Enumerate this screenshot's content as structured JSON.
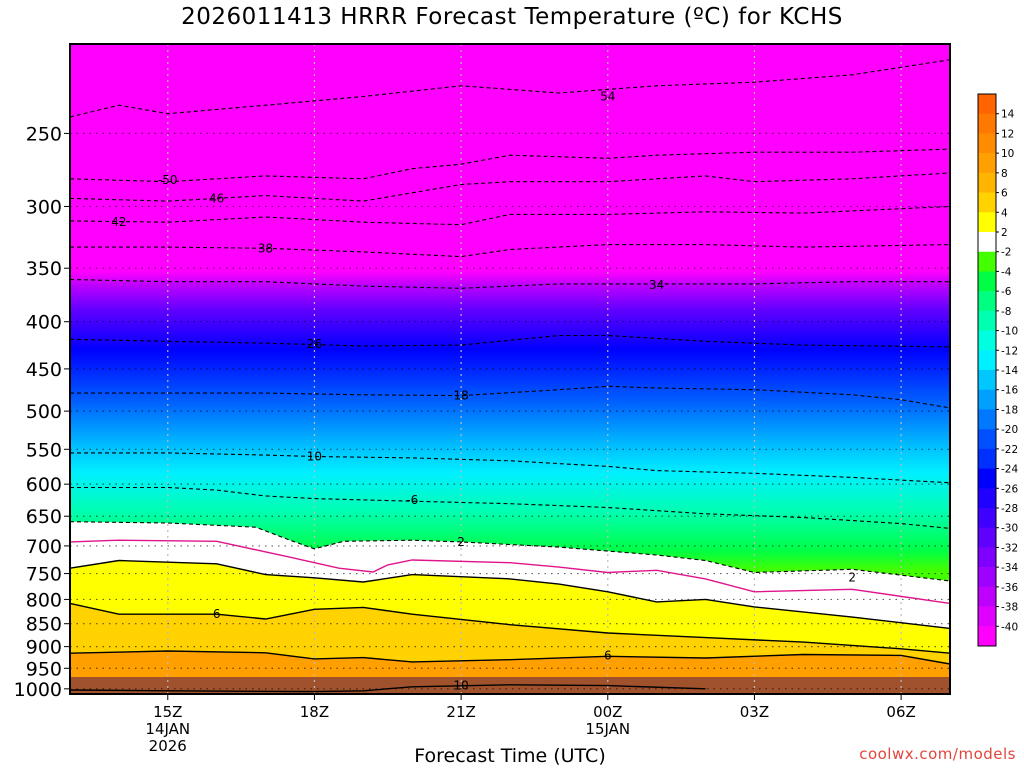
{
  "title": "2026011413 HRRR Forecast Temperature (ºC) for KCHS",
  "watermark": "coolwx.com/models",
  "chart_data": {
    "type": "heatmap",
    "title": "2026011413 HRRR Forecast Temperature (ºC) for KCHS",
    "xlabel": "Forecast Time (UTC)",
    "ylabel": "",
    "x_ticks": [
      {
        "hour": 15,
        "lines": [
          "15Z",
          "14JAN",
          "2026"
        ]
      },
      {
        "hour": 18,
        "lines": [
          "18Z"
        ]
      },
      {
        "hour": 21,
        "lines": [
          "21Z"
        ]
      },
      {
        "hour": 24,
        "lines": [
          "00Z",
          "15JAN"
        ]
      },
      {
        "hour": 27,
        "lines": [
          "03Z"
        ]
      },
      {
        "hour": 30,
        "lines": [
          "06Z"
        ]
      }
    ],
    "xlim_hours": [
      13,
      31
    ],
    "y_ticks": [
      250,
      300,
      350,
      400,
      450,
      500,
      550,
      600,
      650,
      700,
      750,
      800,
      850,
      900,
      950,
      1000
    ],
    "ylim_hpa": [
      200,
      1013
    ],
    "grid": true,
    "colorbar": {
      "position": "right",
      "labels": [
        "14",
        "12",
        "10",
        "8",
        "6",
        "4",
        "2",
        "-2",
        "-4",
        "-6",
        "-8",
        "-10",
        "-12",
        "-14",
        "-16",
        "-18",
        "-20",
        "-22",
        "-24",
        "-26",
        "-28",
        "-30",
        "-32",
        "-34",
        "-36",
        "-38",
        "-40"
      ],
      "colors": [
        "#ff6400",
        "#ff7800",
        "#ff8c00",
        "#ffa000",
        "#ffb400",
        "#ffd200",
        "#ffff00",
        "#ffffff",
        "#44ff00",
        "#00ff44",
        "#00ff80",
        "#00ffb0",
        "#00ffe0",
        "#00f0ff",
        "#00c8ff",
        "#00a0ff",
        "#0078ff",
        "#0050ff",
        "#0030ff",
        "#0000ff",
        "#2000ff",
        "#4000ff",
        "#6000ff",
        "#8000ff",
        "#a000ff",
        "#c000ff",
        "#e000ff",
        "#ff00ff"
      ]
    },
    "contours": [
      {
        "value": -54,
        "label": "54",
        "style": "dashed",
        "color": "#000000",
        "label_at": [
          24,
          228
        ],
        "points": [
          [
            13,
            240
          ],
          [
            14,
            233
          ],
          [
            15,
            238
          ],
          [
            17,
            233
          ],
          [
            19,
            228
          ],
          [
            21,
            222
          ],
          [
            23,
            226
          ],
          [
            25,
            222
          ],
          [
            27,
            220
          ],
          [
            29,
            216
          ],
          [
            31,
            208
          ]
        ]
      },
      {
        "value": -50,
        "label": "-50",
        "style": "dashed",
        "color": "#000000",
        "label_at": [
          15,
          281
        ],
        "points": [
          [
            13,
            280
          ],
          [
            15,
            282
          ],
          [
            17,
            278
          ],
          [
            19,
            280
          ],
          [
            20,
            273
          ],
          [
            21,
            270
          ],
          [
            22,
            264
          ],
          [
            24,
            266
          ],
          [
            25,
            264
          ],
          [
            27,
            262
          ],
          [
            29,
            262
          ],
          [
            31,
            260
          ]
        ]
      },
      {
        "value": -46,
        "label": "46",
        "style": "dashed",
        "color": "#000000",
        "label_at": [
          16,
          294
        ],
        "points": [
          [
            13,
            294
          ],
          [
            15,
            296
          ],
          [
            17,
            292
          ],
          [
            19,
            296
          ],
          [
            21,
            284
          ],
          [
            22,
            282
          ],
          [
            24,
            282
          ],
          [
            26,
            278
          ],
          [
            27,
            282
          ],
          [
            29,
            280
          ],
          [
            31,
            276
          ]
        ]
      },
      {
        "value": -42,
        "label": "42",
        "style": "dashed",
        "color": "#000000",
        "label_at": [
          14,
          312
        ],
        "points": [
          [
            13,
            311
          ],
          [
            15,
            312
          ],
          [
            17,
            308
          ],
          [
            19,
            312
          ],
          [
            21,
            314
          ],
          [
            22,
            306
          ],
          [
            24,
            306
          ],
          [
            26,
            304
          ],
          [
            28,
            305
          ],
          [
            31,
            300
          ]
        ]
      },
      {
        "value": -38,
        "label": "38",
        "style": "dashed",
        "color": "#000000",
        "label_at": [
          17,
          333
        ],
        "points": [
          [
            13,
            332
          ],
          [
            15,
            332
          ],
          [
            17,
            333
          ],
          [
            19,
            336
          ],
          [
            21,
            340
          ],
          [
            22,
            334
          ],
          [
            24,
            330
          ],
          [
            26,
            330
          ],
          [
            28,
            332
          ],
          [
            31,
            330
          ]
        ]
      },
      {
        "value": -34,
        "label": "34",
        "style": "dashed",
        "color": "#000000",
        "label_at": [
          25,
          365
        ],
        "points": [
          [
            13,
            360
          ],
          [
            15,
            362
          ],
          [
            17,
            362
          ],
          [
            19,
            366
          ],
          [
            21,
            368
          ],
          [
            23,
            364
          ],
          [
            25,
            364
          ],
          [
            27,
            364
          ],
          [
            29,
            362
          ],
          [
            31,
            362
          ]
        ]
      },
      {
        "value": -26,
        "label": "26",
        "style": "dashed",
        "color": "#000000",
        "label_at": [
          18,
          423
        ],
        "points": [
          [
            13,
            418
          ],
          [
            15,
            420
          ],
          [
            17,
            422
          ],
          [
            19,
            425
          ],
          [
            21,
            424
          ],
          [
            23,
            414
          ],
          [
            24,
            414
          ],
          [
            26,
            420
          ],
          [
            28,
            424
          ],
          [
            31,
            426
          ]
        ]
      },
      {
        "value": -18,
        "label": "18",
        "style": "dashed",
        "color": "#000000",
        "label_at": [
          21,
          481
        ],
        "points": [
          [
            13,
            478
          ],
          [
            15,
            478
          ],
          [
            17,
            478
          ],
          [
            19,
            480
          ],
          [
            21,
            481
          ],
          [
            23,
            474
          ],
          [
            24,
            470
          ],
          [
            25,
            472
          ],
          [
            27,
            474
          ],
          [
            29,
            480
          ],
          [
            30,
            486
          ],
          [
            31,
            496
          ]
        ]
      },
      {
        "value": -10,
        "label": "10",
        "style": "dashed",
        "color": "#000000",
        "label_at": [
          18,
          560
        ],
        "points": [
          [
            13,
            555
          ],
          [
            15,
            555
          ],
          [
            17,
            558
          ],
          [
            18,
            560
          ],
          [
            20,
            562
          ],
          [
            22,
            566
          ],
          [
            24,
            574
          ],
          [
            25,
            580
          ],
          [
            27,
            584
          ],
          [
            29,
            590
          ],
          [
            31,
            598
          ]
        ]
      },
      {
        "value": -6,
        "label": "-6",
        "style": "dashed",
        "color": "#000000",
        "label_at": [
          20,
          624
        ],
        "points": [
          [
            13,
            605
          ],
          [
            15,
            605
          ],
          [
            16,
            609
          ],
          [
            17,
            618
          ],
          [
            18,
            622
          ],
          [
            20,
            626
          ],
          [
            22,
            630
          ],
          [
            24,
            636
          ],
          [
            26,
            646
          ],
          [
            28,
            652
          ],
          [
            30,
            662
          ],
          [
            31,
            670
          ]
        ]
      },
      {
        "value": -2,
        "label": "2",
        "style": "dashed",
        "color": "#000000",
        "label_at": [
          21,
          693
        ],
        "points": [
          [
            13,
            659
          ],
          [
            15,
            661
          ],
          [
            16.8,
            668
          ],
          [
            17.5,
            690
          ],
          [
            18,
            705
          ],
          [
            18.6,
            692
          ],
          [
            20,
            690
          ],
          [
            21,
            693
          ],
          [
            23,
            702
          ],
          [
            25,
            716
          ],
          [
            26,
            726
          ],
          [
            27,
            748
          ],
          [
            29,
            742
          ],
          [
            31,
            764
          ]
        ]
      },
      {
        "value": 0,
        "label": "",
        "style": "solid",
        "color": "#e0148c",
        "label_at": [],
        "points": [
          [
            13,
            693
          ],
          [
            14,
            690
          ],
          [
            16,
            692
          ],
          [
            17.5,
            720
          ],
          [
            18.5,
            740
          ],
          [
            19.2,
            747
          ],
          [
            19.5,
            734
          ],
          [
            20,
            725
          ],
          [
            22,
            730
          ],
          [
            23,
            738
          ],
          [
            24,
            748
          ],
          [
            25,
            744
          ],
          [
            26,
            760
          ],
          [
            27,
            785
          ],
          [
            29,
            780
          ],
          [
            31,
            808
          ]
        ]
      },
      {
        "value": 2,
        "label": "2",
        "style": "solid",
        "color": "#000000",
        "label_at": [
          29,
          757
        ],
        "points": [
          [
            13,
            740
          ],
          [
            14,
            726
          ],
          [
            16,
            732
          ],
          [
            17,
            752
          ],
          [
            18,
            758
          ],
          [
            19,
            766
          ],
          [
            20,
            752
          ],
          [
            22,
            760
          ],
          [
            23,
            770
          ],
          [
            24,
            785
          ],
          [
            25,
            805
          ],
          [
            26,
            800
          ],
          [
            27,
            815
          ],
          [
            29,
            836
          ],
          [
            31,
            860
          ]
        ]
      },
      {
        "value": 6,
        "label": "6",
        "style": "solid",
        "color": "#000000",
        "label_at": [
          16,
          830
        ],
        "points": [
          [
            13,
            808
          ],
          [
            14,
            830
          ],
          [
            16,
            830
          ],
          [
            17,
            840
          ],
          [
            18,
            820
          ],
          [
            19,
            816
          ],
          [
            20,
            830
          ],
          [
            22,
            852
          ],
          [
            24,
            870
          ],
          [
            26,
            880
          ],
          [
            28,
            890
          ],
          [
            30,
            905
          ],
          [
            31,
            915
          ]
        ]
      },
      {
        "value": 6,
        "label": "6",
        "style": "solid",
        "color": "#000000",
        "label_at": [
          24,
          920
        ],
        "points": [
          [
            13,
            915
          ],
          [
            15,
            910
          ],
          [
            17,
            914
          ],
          [
            18,
            928
          ],
          [
            19,
            925
          ],
          [
            20,
            935
          ],
          [
            22,
            930
          ],
          [
            24,
            922
          ],
          [
            26,
            926
          ],
          [
            28,
            918
          ],
          [
            30,
            920
          ],
          [
            31,
            940
          ]
        ]
      },
      {
        "value": 10,
        "label": "10",
        "style": "solid",
        "color": "#000000",
        "label_at": [
          21,
          992
        ],
        "points": [
          [
            13,
            1003
          ],
          [
            15,
            1005
          ],
          [
            18,
            1007
          ],
          [
            19,
            1005
          ],
          [
            20,
            995
          ],
          [
            22,
            990
          ],
          [
            24,
            992
          ],
          [
            26,
            1000
          ]
        ]
      }
    ]
  }
}
